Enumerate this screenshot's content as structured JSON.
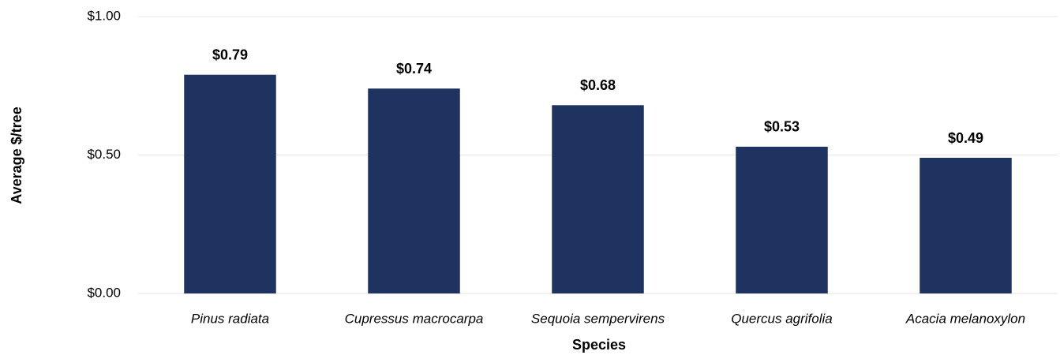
{
  "chart_data": {
    "type": "bar",
    "xlabel": "Species",
    "ylabel": "Average $/tree",
    "categories": [
      "Pinus radiata",
      "Cupressus macrocarpa",
      "Sequoia sempervirens",
      "Quercus agrifolia",
      "Acacia melanoxylon"
    ],
    "values": [
      0.79,
      0.74,
      0.68,
      0.53,
      0.49
    ],
    "value_labels": [
      "$0.79",
      "$0.74",
      "$0.68",
      "$0.53",
      "$0.49"
    ],
    "color": "#1f3360",
    "ylim": [
      0,
      1
    ],
    "yticks": [
      {
        "value": 0,
        "label": "$0.00"
      },
      {
        "value": 0.5,
        "label": "$0.50"
      },
      {
        "value": 1,
        "label": "$1.00"
      }
    ],
    "grid": true
  }
}
